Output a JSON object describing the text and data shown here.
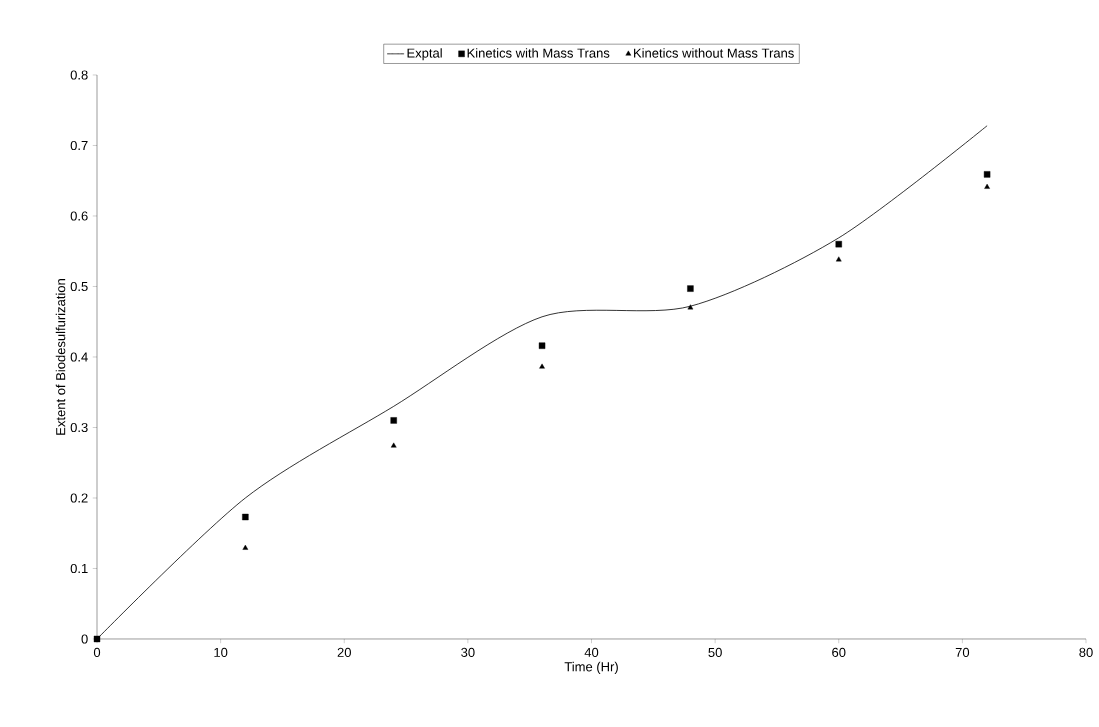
{
  "chart_data": {
    "type": "line",
    "xlabel": "Time (Hr)",
    "ylabel": "Extent of Biodesulfurization",
    "xlim": [
      0,
      80
    ],
    "xticks": [
      0,
      10,
      20,
      30,
      40,
      50,
      60,
      70,
      80
    ],
    "ylim": [
      0,
      0.8
    ],
    "yticks": [
      0,
      0.1,
      0.2,
      0.3,
      0.4,
      0.5,
      0.6,
      0.7,
      0.8
    ],
    "grid": false,
    "legend": "top",
    "x": [
      0,
      12,
      24,
      36,
      48,
      60,
      72
    ],
    "series": [
      {
        "name": "Exptal",
        "color": "#000000",
        "marker": "none",
        "line_style": "solid",
        "values": [
          0,
          0.2,
          0.33,
          0.457,
          0.472,
          0.569,
          0.728
        ]
      },
      {
        "name": "Kinetics with Mass Trans",
        "type": "scatter",
        "color": "#000000",
        "marker": "square",
        "values": [
          0,
          0.173,
          0.31,
          0.416,
          0.497,
          0.56,
          0.659
        ]
      },
      {
        "name": "Kinetics without Mass Trans",
        "type": "scatter",
        "color": "#000000",
        "marker": "triangle",
        "values": [
          null,
          0.129,
          0.274,
          0.386,
          0.47,
          0.538,
          0.641
        ]
      }
    ]
  }
}
